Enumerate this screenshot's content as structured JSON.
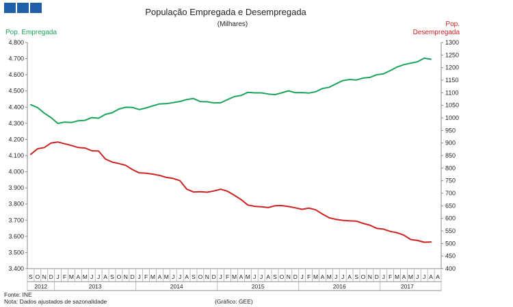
{
  "header": {
    "logo_icon": "ine-logo-icon",
    "brand_color": "#1f5fa8"
  },
  "chart_data": {
    "type": "line",
    "title": "População Empregada e Desempregada",
    "subtitle": "(Milhares)",
    "left_axis_label": "Pop. Empregada",
    "right_axis_label_line1": "Pop.",
    "right_axis_label_line2": "Desempregada",
    "left_ylim": [
      3400,
      4800
    ],
    "right_ylim": [
      400,
      1300
    ],
    "left_ticks": [
      "3.400",
      "3.500",
      "3.600",
      "3.700",
      "3.800",
      "3.900",
      "4.000",
      "4.100",
      "4.200",
      "4.300",
      "4.400",
      "4.500",
      "4.600",
      "4.700",
      "4.800"
    ],
    "right_ticks": [
      "400",
      "450",
      "500",
      "550",
      "600",
      "650",
      "700",
      "750",
      "800",
      "850",
      "900",
      "950",
      "1000",
      "1050",
      "1100",
      "1150",
      "1200",
      "1250",
      "1300"
    ],
    "months": [
      "S",
      "O",
      "N",
      "D",
      "J",
      "F",
      "M",
      "A",
      "M",
      "J",
      "J",
      "A",
      "S",
      "O",
      "N",
      "D",
      "J",
      "F",
      "M",
      "A",
      "M",
      "J",
      "J",
      "A",
      "S",
      "O",
      "N",
      "D",
      "J",
      "F",
      "M",
      "A",
      "M",
      "J",
      "J",
      "A",
      "S",
      "O",
      "N",
      "D",
      "J",
      "F",
      "M",
      "A",
      "M",
      "J",
      "J",
      "A",
      "S",
      "O",
      "N",
      "D",
      "J",
      "F",
      "M",
      "A",
      "M",
      "J",
      "J",
      "A"
    ],
    "years": [
      {
        "label": "2012",
        "start": 0,
        "count": 4
      },
      {
        "label": "2013",
        "start": 4,
        "count": 12
      },
      {
        "label": "2014",
        "start": 16,
        "count": 12
      },
      {
        "label": "2015",
        "start": 28,
        "count": 12
      },
      {
        "label": "2016",
        "start": 40,
        "count": 12
      },
      {
        "label": "2017",
        "start": 52,
        "count": 8
      }
    ],
    "x_extra_label": "A",
    "series": [
      {
        "name": "Pop. Empregada",
        "axis": "left",
        "color": "#1aa35a",
        "values": [
          4415,
          4397,
          4362,
          4335,
          4299,
          4307,
          4305,
          4315,
          4318,
          4335,
          4331,
          4355,
          4365,
          4388,
          4399,
          4398,
          4385,
          4395,
          4408,
          4420,
          4421,
          4428,
          4435,
          4447,
          4453,
          4434,
          4433,
          4426,
          4427,
          4446,
          4465,
          4472,
          4491,
          4488,
          4488,
          4481,
          4477,
          4488,
          4501,
          4489,
          4490,
          4487,
          4495,
          4515,
          4523,
          4544,
          4564,
          4571,
          4568,
          4580,
          4584,
          4600,
          4606,
          4626,
          4648,
          4663,
          4672,
          4681,
          4703,
          4696
        ]
      },
      {
        "name": "Pop. Desempregada",
        "axis": "right",
        "color": "#cc2222",
        "values": [
          855,
          877,
          882,
          900,
          904,
          897,
          890,
          882,
          880,
          869,
          868,
          836,
          824,
          818,
          811,
          794,
          781,
          780,
          776,
          771,
          763,
          759,
          750,
          716,
          705,
          706,
          704,
          709,
          716,
          708,
          692,
          675,
          653,
          648,
          646,
          643,
          650,
          651,
          647,
          642,
          636,
          641,
          634,
          617,
          602,
          596,
          592,
          590,
          589,
          580,
          573,
          560,
          557,
          548,
          543,
          533,
          516,
          512,
          505,
          506
        ]
      }
    ],
    "footer": {
      "source": "Fonte: INE",
      "note": "Nota: Dados ajustados de sazonalidade",
      "credit": "(Gráfico: GEE)"
    }
  }
}
